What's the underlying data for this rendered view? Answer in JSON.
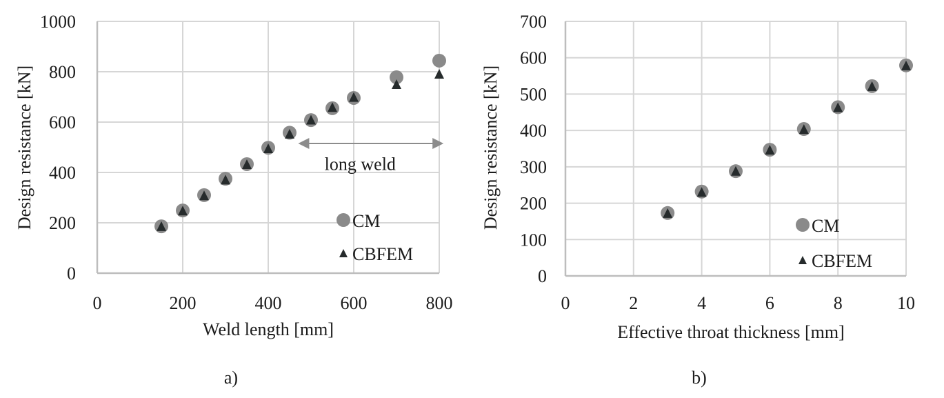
{
  "colors": {
    "cm_marker": "#8a8a8a",
    "cbfem_marker": "#262b2c",
    "grid": "#d6d6d6",
    "axis": "#bdbdbd",
    "arrow": "#8c8c8c"
  },
  "chart_data": [
    {
      "type": "scatter",
      "caption": "a)",
      "title": "",
      "xlabel": "Weld length [mm]",
      "ylabel": "Design resistance [kN]",
      "xlim": [
        0,
        800
      ],
      "ylim": [
        0,
        1000
      ],
      "xticks": [
        0,
        200,
        400,
        600,
        800
      ],
      "yticks": [
        0,
        200,
        400,
        600,
        800,
        1000
      ],
      "xtick_labels": [
        "0",
        "200",
        "400",
        "600",
        "800"
      ],
      "ytick_labels": [
        "0",
        "200",
        "400",
        "600",
        "800",
        "1000"
      ],
      "grid": true,
      "legend_position": "bottom-right",
      "series": [
        {
          "name": "CM",
          "marker": "circle",
          "x": [
            150,
            200,
            250,
            300,
            350,
            400,
            450,
            500,
            550,
            600,
            700,
            800
          ],
          "y": [
            186,
            249,
            310,
            375,
            433,
            498,
            558,
            608,
            655,
            696,
            778,
            844
          ]
        },
        {
          "name": "CBFEM",
          "marker": "triangle",
          "x": [
            150,
            200,
            250,
            300,
            350,
            400,
            450,
            500,
            550,
            600,
            700,
            800
          ],
          "y": [
            184,
            246,
            306,
            369,
            430,
            493,
            551,
            607,
            657,
            697,
            748,
            789
          ]
        }
      ],
      "annotations": [
        {
          "type": "double-arrow",
          "x_from": 470,
          "x_to": 810,
          "y": 515
        },
        {
          "type": "text",
          "text": "long weld",
          "x": 615,
          "y": 410
        }
      ]
    },
    {
      "type": "scatter",
      "caption": "b)",
      "title": "",
      "xlabel": "Effective throat thickness [mm]",
      "ylabel": "Design resistance [kN]",
      "xlim": [
        0,
        10
      ],
      "ylim": [
        0,
        700
      ],
      "xticks": [
        0,
        2,
        4,
        6,
        8,
        10
      ],
      "yticks": [
        0,
        100,
        200,
        300,
        400,
        500,
        600,
        700
      ],
      "xtick_labels": [
        "0",
        "2",
        "4",
        "6",
        "8",
        "10"
      ],
      "ytick_labels": [
        "0",
        "100",
        "200",
        "300",
        "400",
        "500",
        "600",
        "700"
      ],
      "grid": true,
      "legend_position": "bottom-right",
      "series": [
        {
          "name": "CM",
          "marker": "circle",
          "x": [
            3,
            4,
            5,
            6,
            7,
            8,
            9,
            10
          ],
          "y": [
            173,
            232,
            288,
            347,
            404,
            464,
            522,
            579
          ]
        },
        {
          "name": "CBFEM",
          "marker": "triangle",
          "x": [
            3,
            4,
            5,
            6,
            7,
            8,
            9,
            10
          ],
          "y": [
            171,
            229,
            287,
            345,
            402,
            462,
            520,
            577
          ]
        }
      ],
      "annotations": []
    }
  ]
}
